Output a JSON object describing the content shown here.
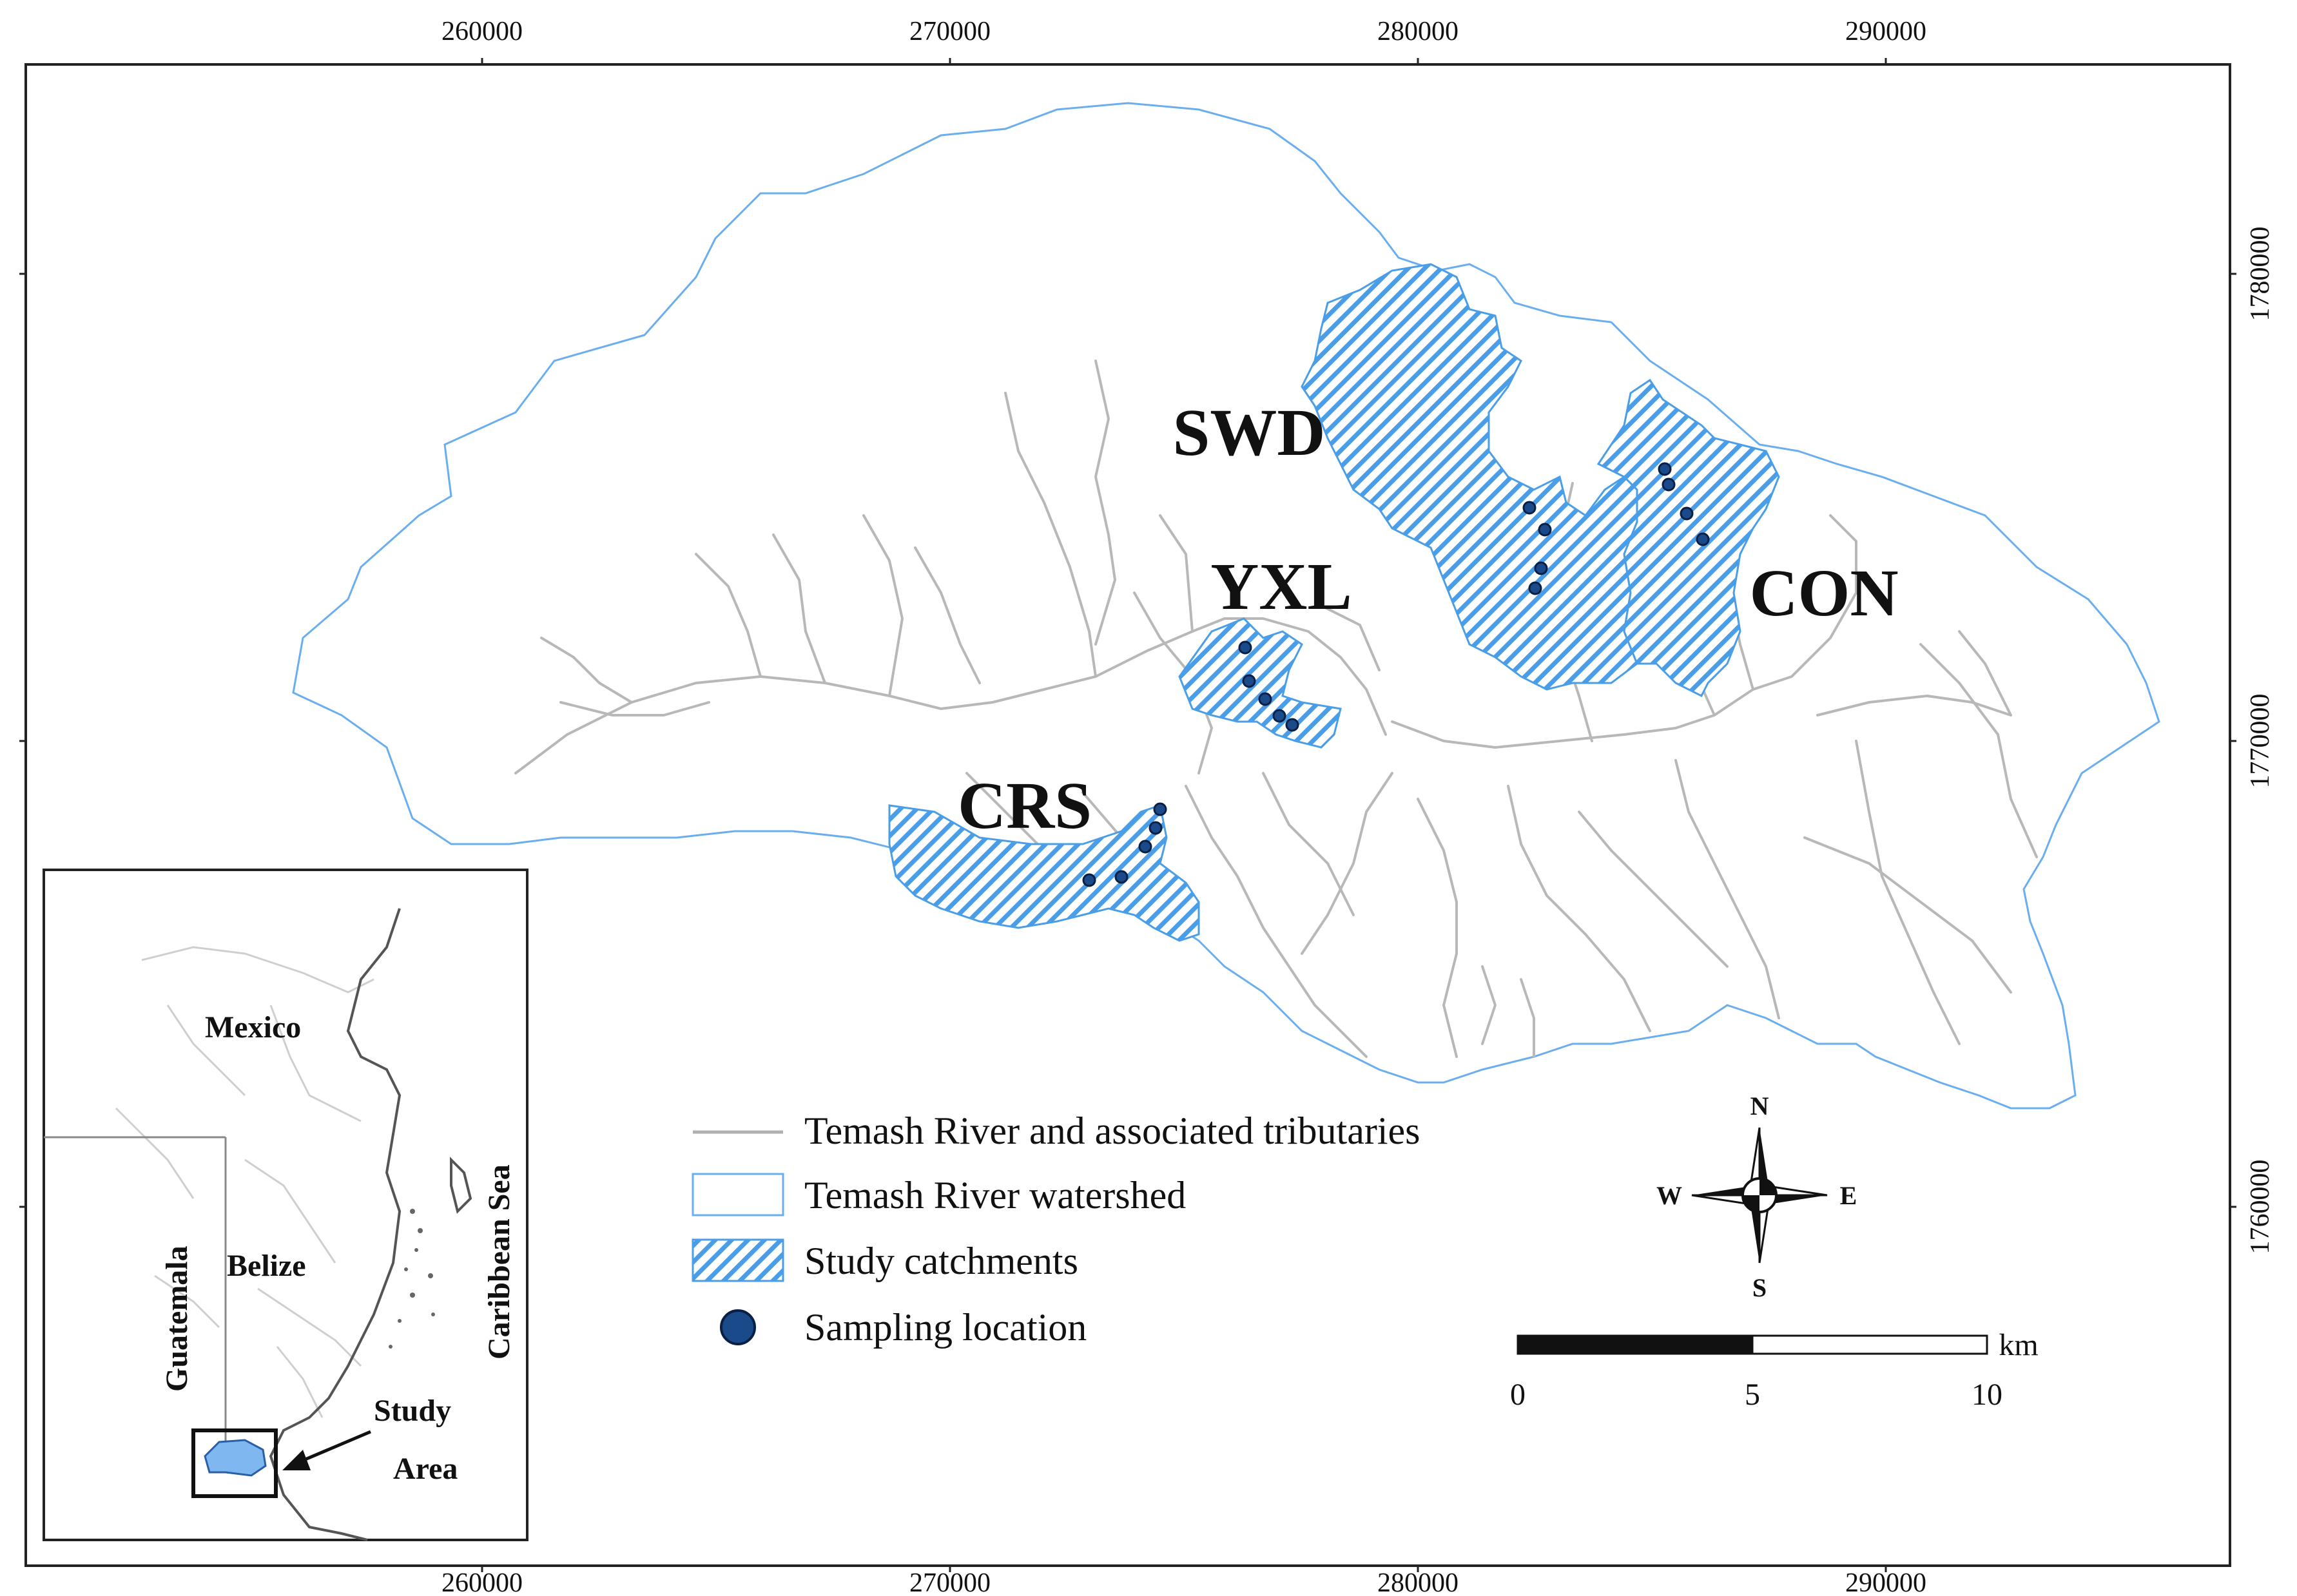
{
  "axes": {
    "x_ticks": [
      "260000",
      "270000",
      "280000",
      "290000"
    ],
    "y_ticks": [
      "1780000",
      "1770000",
      "1760000"
    ]
  },
  "catchments": [
    {
      "id": "SWD",
      "label": "SWD"
    },
    {
      "id": "YXL",
      "label": "YXL"
    },
    {
      "id": "CRS",
      "label": "CRS"
    },
    {
      "id": "CON",
      "label": "CON"
    }
  ],
  "legend": {
    "rivers": "Temash River and associated tributaries",
    "watershed": "Temash River watershed",
    "catchments": "Study catchments",
    "sampling": "Sampling location"
  },
  "inset": {
    "mexico": "Mexico",
    "guatemala": "Guatemala",
    "belize": "Belize",
    "caribbean": "Caribbean Sea",
    "study_line1": "Study",
    "study_line2": "Area"
  },
  "compass": {
    "n": "N",
    "s": "S",
    "e": "E",
    "w": "W"
  },
  "scale": {
    "labels": [
      "0",
      "5",
      "10"
    ],
    "unit": "km"
  },
  "colors": {
    "watershed_outline": "#6aaef0",
    "catchment_hatch": "#4a9ee8",
    "river": "#b8b8b8",
    "sample_point": "#1a4a8a",
    "study_area_fill": "#7fb8f0"
  }
}
